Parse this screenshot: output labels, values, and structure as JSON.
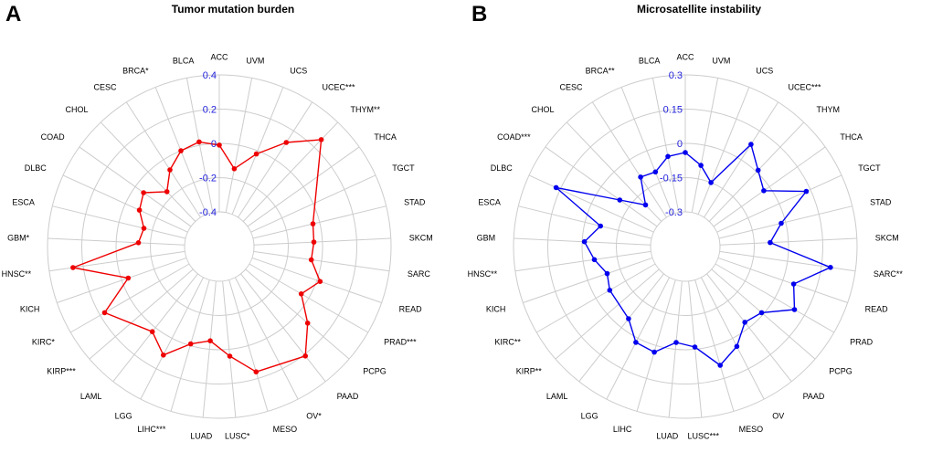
{
  "chart_data": [
    {
      "type": "radar",
      "panel_label": "A",
      "title": "Tumor mutation burden",
      "color": "#ee0000",
      "rlim": [
        -0.4,
        0.4
      ],
      "ticks": [
        "0.4",
        "0.2",
        "0",
        "-0.2",
        "-0.4"
      ],
      "tick_values": [
        0.4,
        0.2,
        0,
        -0.2,
        -0.4
      ],
      "categories": [
        "ACC",
        "UVM",
        "UCS",
        "UCEC***",
        "THYM**",
        "THCA",
        "TGCT",
        "STAD",
        "SKCM",
        "SARC",
        "READ",
        "PRAD***",
        "PCPG",
        "PAAD",
        "OV*",
        "MESO",
        "LUSC*",
        "LUAD",
        "LIHC***",
        "LGG",
        "LAML",
        "KIRP***",
        "KIRC*",
        "KICH",
        "HNSC**",
        "GBM*",
        "ESCA",
        "DLBC",
        "COAD",
        "CHOL",
        "CESC",
        "BRCA*",
        "BLCA"
      ],
      "values": [
        -0.01,
        -0.14,
        -0.02,
        0.12,
        0.26,
        null,
        null,
        -0.04,
        -0.05,
        -0.06,
        0.02,
        -0.05,
        0.08,
        0.21,
        null,
        0.16,
        0.04,
        -0.05,
        -0.01,
        0.11,
        0.03,
        null,
        0.17,
        -0.04,
        0.26,
        -0.13,
        -0.15,
        -0.09,
        -0.06,
        -0.16,
        -0.07,
        0.0,
        0.02
      ]
    },
    {
      "type": "radar",
      "panel_label": "B",
      "title": "Microsatellite instability",
      "color": "#0000ee",
      "rlim": [
        -0.3,
        0.3
      ],
      "ticks": [
        "0.3",
        "0.15",
        "0",
        "-0.15",
        "-0.3"
      ],
      "tick_values": [
        0.3,
        0.15,
        0,
        -0.15,
        -0.3
      ],
      "categories": [
        "ACC",
        "UVM",
        "UCS",
        "UCEC***",
        "THYM",
        "THCA",
        "TGCT",
        "STAD",
        "SKCM",
        "SARC**",
        "READ",
        "PRAD",
        "PCPG",
        "PAAD",
        "OV",
        "MESO",
        "LUSC***",
        "LUAD",
        "LIHC",
        "LGG",
        "LAML",
        "KIRP**",
        "KIRC**",
        "KICH",
        "HNSC**",
        "GBM",
        "ESCA",
        "DLBC",
        "COAD***",
        "CHOL",
        "CESC",
        "BRCA**",
        "BLCA"
      ],
      "values": [
        -0.04,
        -0.09,
        -0.15,
        0.08,
        0.01,
        -0.03,
        0.13,
        -0.02,
        -0.08,
        0.19,
        0.05,
        0.1,
        -0.01,
        -0.03,
        0.04,
        0.09,
        -0.01,
        -0.03,
        0.03,
        0.02,
        -0.05,
        null,
        -0.07,
        -0.09,
        -0.05,
        -0.01,
        -0.07,
        0.17,
        -0.1,
        -0.2,
        -0.09,
        -0.1,
        -0.05
      ]
    }
  ]
}
